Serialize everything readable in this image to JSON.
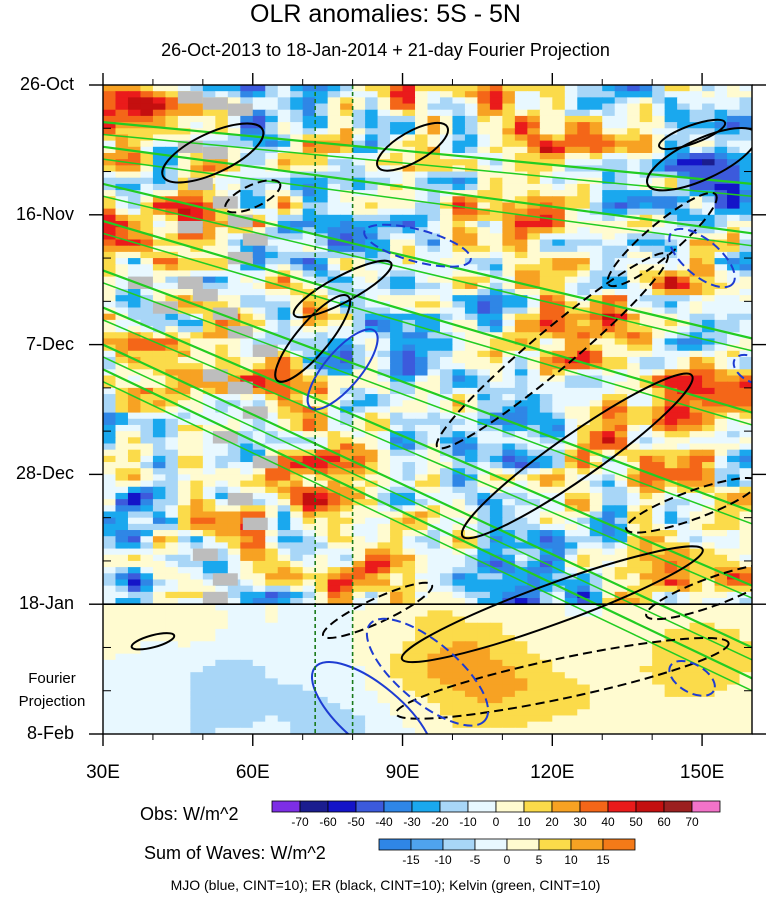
{
  "chart_data": {
    "type": "heatmap",
    "title": "OLR anomalies: 5S - 5N",
    "subtitle": "26-Oct-2013 to 18-Jan-2014 + 21-day Fourier Projection",
    "x_axis": {
      "ticks": [
        "30E",
        "60E",
        "90E",
        "120E",
        "150E"
      ],
      "tick_values": [
        30,
        60,
        90,
        120,
        150
      ],
      "range": [
        30,
        160
      ]
    },
    "y_axis": {
      "ticks": [
        "26-Oct",
        "16-Nov",
        "7-Dec",
        "28-Dec",
        "18-Jan",
        "8-Feb"
      ],
      "tick_days": [
        0,
        21,
        42,
        63,
        84,
        105
      ],
      "inverted": true
    },
    "projection_label": [
      "Fourier",
      "Projection"
    ],
    "projection_start": "18-Jan",
    "reference_lines_lon": [
      72.5,
      80
    ],
    "obs_colorbar": {
      "label": "Obs: W/m^2",
      "levels": [
        -70,
        -60,
        -50,
        -40,
        -30,
        -20,
        -10,
        0,
        10,
        20,
        30,
        40,
        50,
        60,
        70
      ],
      "level_labels": [
        "-70",
        "-60",
        "-50",
        "-40",
        "-30",
        "-20",
        "-10",
        "0",
        "10",
        "20",
        "30",
        "40",
        "50",
        "60",
        "70"
      ],
      "colors": [
        "#7d2ee5",
        "#1b1d8f",
        "#1414c8",
        "#3c5adc",
        "#2f86e6",
        "#1aa8ee",
        "#a8d6f7",
        "#e8f8ff",
        "#fffbd0",
        "#fbdb4a",
        "#f7a223",
        "#f46618",
        "#ea1b1b",
        "#c40f0f",
        "#9b2020",
        "#f373c9"
      ]
    },
    "waves_colorbar": {
      "label": "Sum of Waves: W/m^2",
      "levels": [
        -15,
        -10,
        -5,
        0,
        5,
        10,
        15
      ],
      "level_labels": [
        "-15",
        "-10",
        "-5",
        "0",
        "5",
        "10",
        "15"
      ],
      "colors": [
        "#2f86e6",
        "#4fa3ee",
        "#a8d6f7",
        "#e8f8ff",
        "#fffbd0",
        "#fbdb4a",
        "#f7a223",
        "#f47a18"
      ]
    },
    "contour_legend": "MJO (blue, CINT=10); ER (black, CINT=10); Kelvin (green, CINT=10)",
    "contour_colors": {
      "MJO": "#1e3cd2",
      "ER": "#000000",
      "Kelvin": "#22cc22"
    }
  }
}
